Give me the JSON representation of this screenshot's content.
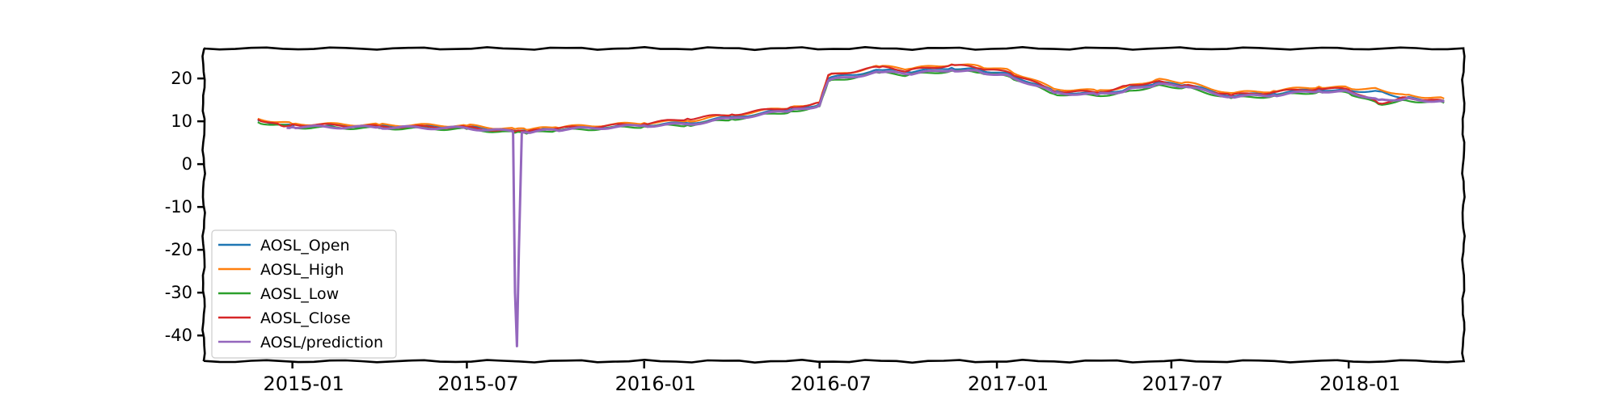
{
  "chart_data": {
    "type": "line",
    "title": "",
    "xlabel": "",
    "ylabel": "",
    "x_range": [
      "2014-10-01",
      "2018-04-30"
    ],
    "ylim": [
      -46,
      27
    ],
    "y_ticks": [
      20,
      10,
      0,
      -10,
      -20,
      -30,
      -40
    ],
    "y_tick_labels": [
      "20",
      "10",
      "0",
      "-10",
      "-20",
      "-30",
      "-40"
    ],
    "x_ticks": [
      "2015-01-01",
      "2015-07-01",
      "2016-01-01",
      "2016-07-01",
      "2017-01-01",
      "2017-07-01",
      "2018-01-01"
    ],
    "x_tick_labels": [
      "2015-01",
      "2015-07",
      "2016-01",
      "2016-07",
      "2017-01",
      "2017-07",
      "2018-01"
    ],
    "legend_position": "lower-left",
    "series": [
      {
        "name": "AOSL_Open",
        "color": "#1f77b4",
        "x": [
          "2014-11-26",
          "2015-01-01",
          "2015-04-01",
          "2015-07-01",
          "2015-08-20",
          "2015-09-01",
          "2015-10-01",
          "2016-01-01",
          "2016-02-15",
          "2016-04-01",
          "2016-06-01",
          "2016-07-01",
          "2016-07-10",
          "2016-09-01",
          "2016-10-01",
          "2016-11-15",
          "2016-12-15",
          "2017-01-15",
          "2017-03-01",
          "2017-04-15",
          "2017-05-15",
          "2017-06-15",
          "2017-07-15",
          "2017-09-01",
          "2017-10-15",
          "2017-12-01",
          "2018-01-01",
          "2018-02-01",
          "2018-03-01",
          "2018-04-10"
        ],
        "y": [
          10.2,
          9.0,
          8.8,
          8.6,
          7.8,
          7.6,
          8.2,
          9.2,
          9.6,
          11.0,
          12.8,
          14.0,
          20.0,
          22.0,
          21.5,
          22.5,
          22.0,
          21.0,
          17.0,
          16.5,
          17.5,
          19.0,
          18.5,
          16.0,
          16.5,
          17.5,
          17.2,
          17.0,
          15.5,
          14.8
        ]
      },
      {
        "name": "AOSL_High",
        "color": "#ff7f0e",
        "x": [
          "2014-11-26",
          "2015-01-01",
          "2015-04-01",
          "2015-07-01",
          "2015-08-20",
          "2015-09-01",
          "2015-10-01",
          "2016-01-01",
          "2016-02-15",
          "2016-04-01",
          "2016-06-01",
          "2016-07-01",
          "2016-07-10",
          "2016-09-01",
          "2016-10-01",
          "2016-11-15",
          "2016-12-15",
          "2017-01-15",
          "2017-03-01",
          "2017-04-15",
          "2017-05-15",
          "2017-06-15",
          "2017-07-15",
          "2017-09-01",
          "2017-10-15",
          "2017-12-01",
          "2018-01-01",
          "2018-02-01",
          "2018-03-01",
          "2018-04-10"
        ],
        "y": [
          10.6,
          9.4,
          9.2,
          9.0,
          8.2,
          8.0,
          8.6,
          9.6,
          10.1,
          11.5,
          13.3,
          14.5,
          20.6,
          22.8,
          22.2,
          23.3,
          22.8,
          21.8,
          17.6,
          17.1,
          18.1,
          19.7,
          19.1,
          16.6,
          17.1,
          18.1,
          17.8,
          17.5,
          16.2,
          15.3
        ]
      },
      {
        "name": "AOSL_Low",
        "color": "#2ca02c",
        "x": [
          "2014-11-26",
          "2015-01-01",
          "2015-04-01",
          "2015-07-01",
          "2015-08-20",
          "2015-09-01",
          "2015-10-01",
          "2016-01-01",
          "2016-02-15",
          "2016-04-01",
          "2016-06-01",
          "2016-07-01",
          "2016-07-10",
          "2016-09-01",
          "2016-10-01",
          "2016-11-15",
          "2016-12-15",
          "2017-01-15",
          "2017-03-01",
          "2017-04-15",
          "2017-05-15",
          "2017-06-15",
          "2017-07-15",
          "2017-09-01",
          "2017-10-15",
          "2017-12-01",
          "2018-01-01",
          "2018-02-01",
          "2018-03-01",
          "2018-04-10"
        ],
        "y": [
          9.8,
          8.6,
          8.4,
          8.2,
          7.3,
          7.1,
          7.8,
          8.8,
          9.1,
          10.5,
          12.3,
          13.5,
          19.3,
          21.3,
          20.8,
          21.8,
          21.3,
          20.3,
          16.4,
          15.9,
          16.9,
          18.3,
          17.9,
          15.4,
          15.9,
          16.9,
          16.6,
          14.0,
          14.9,
          14.3
        ]
      },
      {
        "name": "AOSL_Close",
        "color": "#d62728",
        "x": [
          "2014-11-26",
          "2014-12-20",
          "2015-01-01",
          "2015-04-01",
          "2015-07-01",
          "2015-08-20",
          "2015-09-01",
          "2015-10-01",
          "2016-01-01",
          "2016-02-15",
          "2016-04-01",
          "2016-06-01",
          "2016-07-01",
          "2016-07-10",
          "2016-09-01",
          "2016-10-01",
          "2016-11-15",
          "2016-12-15",
          "2017-01-15",
          "2017-03-01",
          "2017-04-15",
          "2017-05-15",
          "2017-06-15",
          "2017-07-15",
          "2017-09-01",
          "2017-10-15",
          "2017-12-01",
          "2018-01-01",
          "2018-02-01",
          "2018-03-01",
          "2018-04-10"
        ],
        "y": [
          10.5,
          9.0,
          9.3,
          8.8,
          8.6,
          7.6,
          7.5,
          8.3,
          9.4,
          10.6,
          11.6,
          13.3,
          14.3,
          20.8,
          22.6,
          21.8,
          23.2,
          22.3,
          21.3,
          17.1,
          16.7,
          18.3,
          19.3,
          18.4,
          16.1,
          16.8,
          17.7,
          17.4,
          14.2,
          15.6,
          14.6
        ]
      },
      {
        "name": "AOSL/prediction",
        "color": "#9467bd",
        "x": [
          "2014-12-26",
          "2015-01-01",
          "2015-04-01",
          "2015-07-01",
          "2015-08-18",
          "2015-08-20",
          "2015-08-22",
          "2015-08-24",
          "2015-08-27",
          "2015-09-01",
          "2015-10-01",
          "2016-01-01",
          "2016-02-15",
          "2016-04-01",
          "2016-06-01",
          "2016-07-01",
          "2016-07-10",
          "2016-09-01",
          "2016-10-01",
          "2016-11-15",
          "2016-12-15",
          "2017-01-15",
          "2017-03-01",
          "2017-04-15",
          "2017-05-15",
          "2017-06-15",
          "2017-07-15",
          "2017-09-01",
          "2017-10-15",
          "2017-12-01",
          "2018-01-01",
          "2018-02-01",
          "2018-03-01",
          "2018-04-10"
        ],
        "y": [
          8.5,
          8.7,
          8.6,
          8.4,
          7.6,
          -30.0,
          -42.5,
          -20.0,
          7.4,
          7.4,
          8.0,
          9.0,
          9.3,
          10.7,
          12.5,
          13.7,
          19.5,
          21.5,
          21.0,
          22.0,
          21.5,
          20.5,
          16.7,
          16.2,
          17.2,
          18.6,
          18.1,
          15.7,
          16.1,
          17.1,
          16.9,
          15.0,
          15.3,
          14.6
        ]
      }
    ]
  }
}
